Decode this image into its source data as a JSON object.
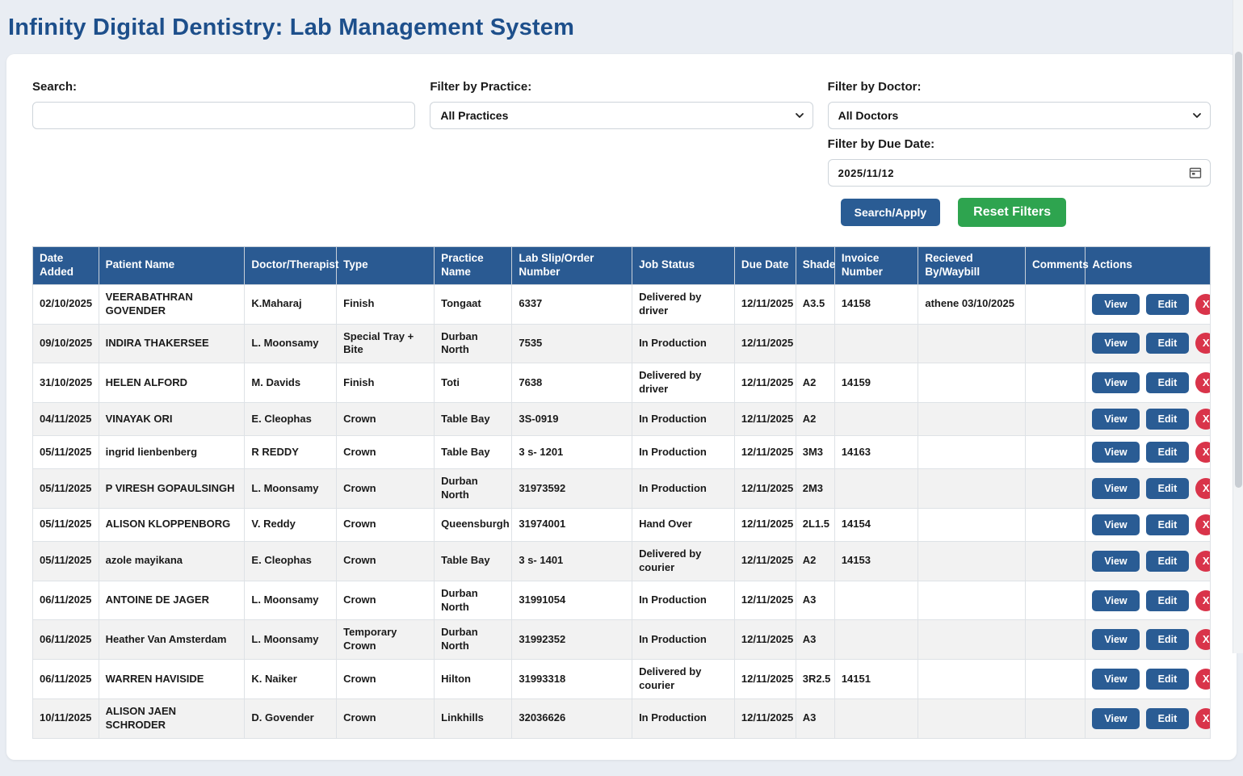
{
  "page": {
    "title": "Infinity Digital Dentistry: Lab Management System"
  },
  "filters": {
    "search_label": "Search:",
    "search_value": "",
    "practice_label": "Filter by Practice:",
    "practice_selected": "All Practices",
    "doctor_label": "Filter by Doctor:",
    "doctor_selected": "All Doctors",
    "due_date_label": "Filter by Due Date:",
    "due_date_value": "2025/11/12",
    "apply_button": "Search/Apply",
    "reset_button": "Reset Filters"
  },
  "colors": {
    "accent_blue": "#2a5a92",
    "title_blue": "#1d4f8b",
    "green": "#2ea44f",
    "danger_red": "#d9344a",
    "stripe_gray": "#f2f2f2"
  },
  "icons": {
    "calendar": "calendar-icon",
    "chevron": "chevron-down-icon",
    "delete": "x-circle-icon"
  },
  "table": {
    "columns": [
      "Date Added",
      "Patient Name",
      "Doctor/Therapist",
      "Type",
      "Practice Name",
      "Lab Slip/Order Number",
      "Job Status",
      "Due Date",
      "Shade",
      "Invoice Number",
      "Recieved By/Waybill",
      "Comments",
      "Actions"
    ],
    "actions": {
      "view": "View",
      "edit": "Edit",
      "delete": "X"
    },
    "rows": [
      {
        "date_added": "02/10/2025",
        "patient": "VEERABATHRAN GOVENDER",
        "doctor": "K.Maharaj",
        "type": "Finish",
        "practice": "Tongaat",
        "order": "6337",
        "status": "Delivered by driver",
        "due": "12/11/2025",
        "shade": "A3.5",
        "invoice": "14158",
        "received": "athene 03/10/2025",
        "comments": ""
      },
      {
        "date_added": "09/10/2025",
        "patient": "INDIRA THAKERSEE",
        "doctor": "L. Moonsamy",
        "type": "Special Tray + Bite",
        "practice": "Durban North",
        "order": "7535",
        "status": "In Production",
        "due": "12/11/2025",
        "shade": "",
        "invoice": "",
        "received": "",
        "comments": ""
      },
      {
        "date_added": "31/10/2025",
        "patient": "HELEN ALFORD",
        "doctor": "M. Davids",
        "type": "Finish",
        "practice": "Toti",
        "order": "7638",
        "status": "Delivered by driver",
        "due": "12/11/2025",
        "shade": "A2",
        "invoice": "14159",
        "received": "",
        "comments": ""
      },
      {
        "date_added": "04/11/2025",
        "patient": "VINAYAK ORI",
        "doctor": "E. Cleophas",
        "type": "Crown",
        "practice": "Table Bay",
        "order": "3S-0919",
        "status": "In Production",
        "due": "12/11/2025",
        "shade": "A2",
        "invoice": "",
        "received": "",
        "comments": ""
      },
      {
        "date_added": "05/11/2025",
        "patient": "ingrid lienbenberg",
        "doctor": "R REDDY",
        "type": "Crown",
        "practice": "Table Bay",
        "order": "3 s- 1201",
        "status": "In Production",
        "due": "12/11/2025",
        "shade": "3M3",
        "invoice": "14163",
        "received": "",
        "comments": ""
      },
      {
        "date_added": "05/11/2025",
        "patient": "P VIRESH GOPAULSINGH",
        "doctor": "L. Moonsamy",
        "type": "Crown",
        "practice": "Durban North",
        "order": "31973592",
        "status": "In Production",
        "due": "12/11/2025",
        "shade": "2M3",
        "invoice": "",
        "received": "",
        "comments": ""
      },
      {
        "date_added": "05/11/2025",
        "patient": "ALISON KLOPPENBORG",
        "doctor": "V. Reddy",
        "type": "Crown",
        "practice": "Queensburgh",
        "order": "31974001",
        "status": "Hand Over",
        "due": "12/11/2025",
        "shade": "2L1.5",
        "invoice": "14154",
        "received": "",
        "comments": ""
      },
      {
        "date_added": "05/11/2025",
        "patient": "azole mayikana",
        "doctor": "E. Cleophas",
        "type": "Crown",
        "practice": "Table Bay",
        "order": "3 s- 1401",
        "status": "Delivered by courier",
        "due": "12/11/2025",
        "shade": "A2",
        "invoice": "14153",
        "received": "",
        "comments": ""
      },
      {
        "date_added": "06/11/2025",
        "patient": "ANTOINE DE JAGER",
        "doctor": "L. Moonsamy",
        "type": "Crown",
        "practice": "Durban North",
        "order": "31991054",
        "status": "In Production",
        "due": "12/11/2025",
        "shade": "A3",
        "invoice": "",
        "received": "",
        "comments": ""
      },
      {
        "date_added": "06/11/2025",
        "patient": "Heather Van Amsterdam",
        "doctor": "L. Moonsamy",
        "type": "Temporary Crown",
        "practice": "Durban North",
        "order": "31992352",
        "status": "In Production",
        "due": "12/11/2025",
        "shade": "A3",
        "invoice": "",
        "received": "",
        "comments": ""
      },
      {
        "date_added": "06/11/2025",
        "patient": "WARREN HAVISIDE",
        "doctor": "K. Naiker",
        "type": "Crown",
        "practice": "Hilton",
        "order": "31993318",
        "status": "Delivered by courier",
        "due": "12/11/2025",
        "shade": "3R2.5",
        "invoice": "14151",
        "received": "",
        "comments": ""
      },
      {
        "date_added": "10/11/2025",
        "patient": "ALISON JAEN SCHRODER",
        "doctor": "D. Govender",
        "type": "Crown",
        "practice": "Linkhills",
        "order": "32036626",
        "status": "In Production",
        "due": "12/11/2025",
        "shade": "A3",
        "invoice": "",
        "received": "",
        "comments": ""
      }
    ]
  }
}
